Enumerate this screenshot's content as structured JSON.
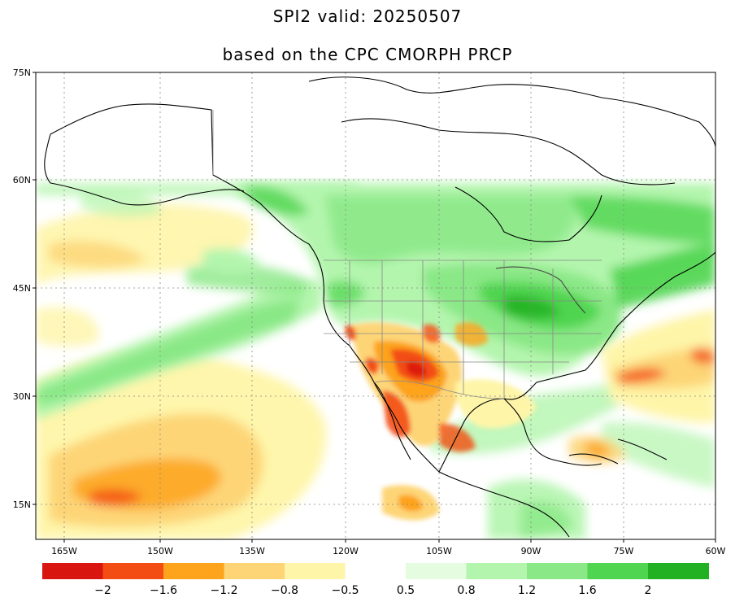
{
  "title_line1": "SPI2   valid: 20250507",
  "title_line2": "based on the CPC CMORPH PRCP",
  "lat_labels": [
    "75N",
    "60N",
    "45N",
    "30N",
    "15N"
  ],
  "lon_labels": [
    "165W",
    "150W",
    "135W",
    "120W",
    "105W",
    "90W",
    "75W",
    "60W"
  ],
  "colorbar": {
    "colors": [
      "#d8150f",
      "#f34d14",
      "#fda31c",
      "#fdd577",
      "#fef5a8",
      "#ffffff",
      "#e6fce1",
      "#b3f5ad",
      "#8ae886",
      "#4fd54f",
      "#22b122"
    ],
    "labels": [
      "−2",
      "−1.6",
      "−1.2",
      "−0.8",
      "−0.5",
      "0.5",
      "0.8",
      "1.2",
      "1.6",
      "2"
    ]
  }
}
